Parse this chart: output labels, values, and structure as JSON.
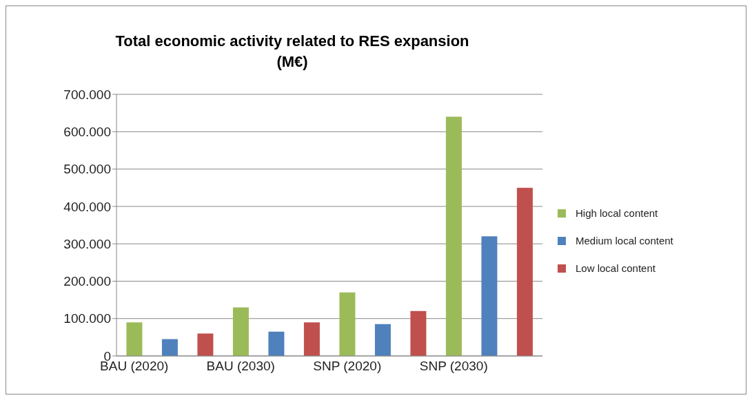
{
  "chart_data": {
    "type": "bar",
    "title": "Total economic activity related to RES expansion\n(M€)",
    "categories": [
      "BAU (2020)",
      null,
      null,
      "BAU (2030)",
      null,
      null,
      "SNP (2020)",
      null,
      null,
      "SNP (2030)",
      null,
      null
    ],
    "series": [
      {
        "name": "High local content",
        "color": "#9bbb59",
        "values": [
          90000,
          null,
          null,
          130000,
          null,
          null,
          170000,
          null,
          null,
          640000,
          null,
          null
        ]
      },
      {
        "name": "Medium local content",
        "color": "#4f81bd",
        "values": [
          null,
          45000,
          null,
          null,
          65000,
          null,
          null,
          85000,
          null,
          null,
          320000,
          null
        ]
      },
      {
        "name": "Low local content",
        "color": "#c0504d",
        "values": [
          null,
          null,
          60000,
          null,
          null,
          90000,
          null,
          null,
          120000,
          null,
          null,
          450000
        ]
      }
    ],
    "stacked": true,
    "ylim": [
      0,
      700000
    ],
    "yticks": [
      0,
      {
        "value": 100000,
        "label": "100.000"
      },
      {
        "value": 200000,
        "label": "200.000"
      },
      {
        "value": 300000,
        "label": "300.000"
      },
      {
        "value": 400000,
        "label": "400.000"
      },
      {
        "value": 500000,
        "label": "500.000"
      },
      {
        "value": 600000,
        "label": "600.000"
      },
      {
        "value": 700000,
        "label": "700.000"
      }
    ],
    "grid": "y",
    "legend": "right"
  }
}
